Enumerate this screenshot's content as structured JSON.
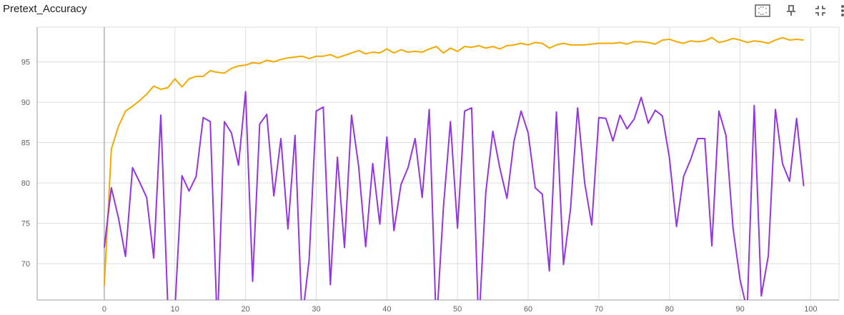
{
  "title": "Pretext_Accuracy",
  "toolbar": {
    "icons": [
      "fit-domain-icon",
      "pin-icon",
      "collapse-icon",
      "more-vert-icon"
    ]
  },
  "colors": {
    "series_orange": "#f4a900",
    "series_purple": "#9334e6",
    "grid": "#dddddd",
    "axis": "#9e9e9e"
  },
  "chart_data": {
    "type": "line",
    "title": "Pretext_Accuracy",
    "xlabel": "",
    "ylabel": "",
    "xlim": [
      -9.5,
      104
    ],
    "ylim": [
      65.5,
      99.3
    ],
    "grid": true,
    "x_ticks": [
      0,
      10,
      20,
      30,
      40,
      50,
      60,
      70,
      80,
      90,
      100
    ],
    "y_ticks": [
      70,
      75,
      80,
      85,
      90,
      95
    ],
    "series": [
      {
        "color": "#f4a900",
        "x": [
          0,
          1,
          2,
          3,
          4,
          5,
          6,
          7,
          8,
          9,
          10,
          11,
          12,
          13,
          14,
          15,
          16,
          17,
          18,
          19,
          20,
          21,
          22,
          23,
          24,
          25,
          26,
          27,
          28,
          29,
          30,
          31,
          32,
          33,
          34,
          35,
          36,
          37,
          38,
          39,
          40,
          41,
          42,
          43,
          44,
          45,
          46,
          47,
          48,
          49,
          50,
          51,
          52,
          53,
          54,
          55,
          56,
          57,
          58,
          59,
          60,
          61,
          62,
          63,
          64,
          65,
          66,
          67,
          68,
          69,
          70,
          71,
          72,
          73,
          74,
          75,
          76,
          77,
          78,
          79,
          80,
          81,
          82,
          83,
          84,
          85,
          86,
          87,
          88,
          89,
          90,
          91,
          92,
          93,
          94,
          95,
          96,
          97,
          98,
          99
        ],
        "values": [
          67.3,
          84.2,
          87.0,
          88.9,
          89.5,
          90.2,
          91.0,
          92.0,
          91.6,
          91.8,
          92.9,
          91.9,
          92.9,
          93.2,
          93.2,
          93.9,
          93.7,
          93.6,
          94.2,
          94.5,
          94.6,
          94.9,
          94.8,
          95.2,
          95.0,
          95.3,
          95.5,
          95.6,
          95.7,
          95.4,
          95.7,
          95.7,
          95.9,
          95.5,
          95.8,
          96.1,
          96.4,
          96.0,
          96.2,
          96.1,
          96.6,
          96.1,
          96.5,
          96.2,
          96.3,
          96.2,
          96.6,
          96.9,
          96.1,
          96.7,
          96.3,
          96.9,
          96.8,
          97.0,
          96.7,
          96.9,
          96.6,
          97.0,
          97.1,
          97.3,
          97.1,
          97.4,
          97.3,
          96.7,
          97.1,
          97.3,
          97.1,
          97.1,
          97.1,
          97.2,
          97.3,
          97.3,
          97.3,
          97.4,
          97.2,
          97.5,
          97.5,
          97.4,
          97.2,
          97.7,
          97.8,
          97.5,
          97.3,
          97.6,
          97.5,
          97.6,
          98.0,
          97.4,
          97.6,
          97.9,
          97.7,
          97.4,
          97.6,
          97.5,
          97.3,
          97.7,
          98.0,
          97.7,
          97.8,
          97.7
        ]
      },
      {
        "color": "#9334e6",
        "x": [
          0,
          1,
          2,
          3,
          4,
          5,
          6,
          7,
          8,
          9,
          10,
          11,
          12,
          13,
          14,
          15,
          16,
          17,
          18,
          19,
          20,
          21,
          22,
          23,
          24,
          25,
          26,
          27,
          28,
          29,
          30,
          31,
          32,
          33,
          34,
          35,
          36,
          37,
          38,
          39,
          40,
          41,
          42,
          43,
          44,
          45,
          46,
          47,
          48,
          49,
          50,
          51,
          52,
          53,
          54,
          55,
          56,
          57,
          58,
          59,
          60,
          61,
          62,
          63,
          64,
          65,
          66,
          67,
          68,
          69,
          70,
          71,
          72,
          73,
          74,
          75,
          76,
          77,
          78,
          79,
          80,
          81,
          82,
          83,
          84,
          85,
          86,
          87,
          88,
          89,
          90,
          91,
          92,
          93,
          94,
          95,
          96,
          97,
          98,
          99
        ],
        "values": [
          72.0,
          79.4,
          75.7,
          70.9,
          81.9,
          80.1,
          78.2,
          70.7,
          88.4,
          64.5,
          64.3,
          80.9,
          79.0,
          80.8,
          88.1,
          87.6,
          62.0,
          87.6,
          86.2,
          82.2,
          91.3,
          67.8,
          87.3,
          88.5,
          78.4,
          85.5,
          74.3,
          85.9,
          63.0,
          70.5,
          88.9,
          89.4,
          67.4,
          83.2,
          72.0,
          88.4,
          82.1,
          72.1,
          82.4,
          74.9,
          85.7,
          74.1,
          79.8,
          81.9,
          85.5,
          78.2,
          89.1,
          62.0,
          76.9,
          87.6,
          74.4,
          88.9,
          89.3,
          62.0,
          78.8,
          86.4,
          81.8,
          78.1,
          85.2,
          88.9,
          86.2,
          79.4,
          78.6,
          69.1,
          88.8,
          69.9,
          76.8,
          89.3,
          80.0,
          74.8,
          88.1,
          88.0,
          85.2,
          88.4,
          86.7,
          87.9,
          90.6,
          87.4,
          89.0,
          88.3,
          83.1,
          74.6,
          80.8,
          82.9,
          85.5,
          85.5,
          72.2,
          88.9,
          85.9,
          74.4,
          68.0,
          64.2,
          89.6,
          66.0,
          71.0,
          89.1,
          82.4,
          80.2,
          88.0,
          79.6
        ]
      }
    ]
  }
}
